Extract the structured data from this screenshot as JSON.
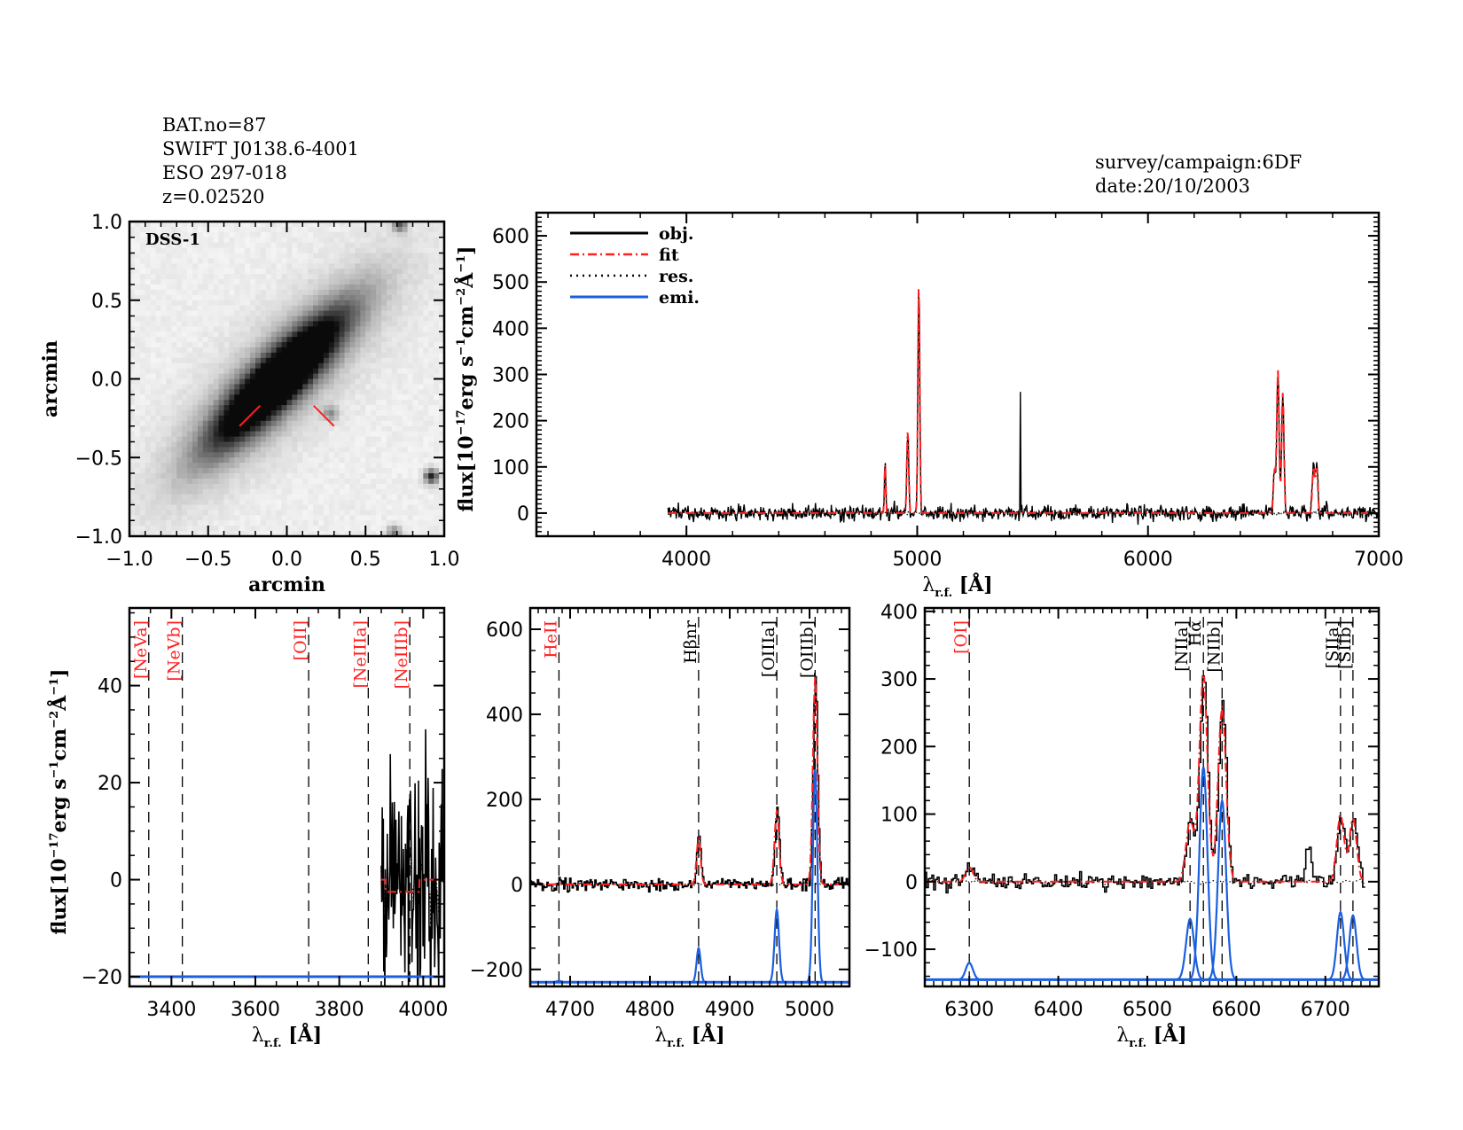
{
  "header_left": {
    "lines": [
      "BAT.no=87",
      "SWIFT J0138.6-4001",
      "ESO 297-018",
      "z=0.02520"
    ]
  },
  "header_right": {
    "lines": [
      "survey/campaign:6DF",
      "date:20/10/2003"
    ]
  },
  "colors": {
    "obj": "#000000",
    "fit": "#ff2020",
    "res": "#000000",
    "emi": "#1a5fe0",
    "line_marker_red": "#ff2020",
    "line_marker_black": "#000000"
  },
  "chart_data": [
    {
      "id": "image",
      "type": "heatmap",
      "title": "",
      "label": "DSS-1",
      "xlabel": "arcmin",
      "ylabel": "arcmin",
      "xlim": [
        -1.0,
        1.0
      ],
      "ylim": [
        -1.0,
        1.0
      ],
      "xticks": [
        "-1.0",
        "-0.5",
        "0.0",
        "0.5",
        "1.0"
      ],
      "yticks": [
        "-1.0",
        "-0.5",
        "0.0",
        "0.5",
        "1.0"
      ],
      "galaxy": {
        "center": [
          -0.05,
          0.0
        ],
        "position_angle_deg": 45,
        "major": 0.55,
        "minor": 0.14
      },
      "sources": [
        {
          "x": 0.92,
          "y": -0.62,
          "strength": 0.9
        },
        {
          "x": 0.72,
          "y": 0.98,
          "strength": 0.6
        },
        {
          "x": 0.68,
          "y": -0.98,
          "strength": 0.5
        },
        {
          "x": 0.28,
          "y": -0.22,
          "strength": 0.4
        }
      ],
      "slit_marks": [
        {
          "x1": -0.3,
          "y1": -0.3,
          "x2": -0.17,
          "y2": -0.17
        },
        {
          "x1": 0.17,
          "y1": -0.17,
          "x2": 0.3,
          "y2": -0.3
        }
      ]
    },
    {
      "id": "full",
      "type": "line",
      "xlabel": "λr.f. [Å]",
      "ylabel": "flux[10^-17 erg s^-1 cm^-2 Å^-1]",
      "xlim": [
        3350,
        7000
      ],
      "ylim": [
        -50,
        650
      ],
      "xticks": [
        4000,
        5000,
        6000,
        7000
      ],
      "yticks": [
        0,
        100,
        200,
        300,
        400,
        500,
        600
      ],
      "data_range": [
        3920,
        7000
      ],
      "noise": 14,
      "legend": {
        "position": "top-left",
        "entries": [
          {
            "label": "obj.",
            "style": "solid",
            "color": "#000000"
          },
          {
            "label": "fit",
            "style": "dashdot",
            "color": "#ff2020"
          },
          {
            "label": "res.",
            "style": "dotted",
            "color": "#000000"
          },
          {
            "label": "emi.",
            "style": "solid",
            "color": "#1a5fe0"
          }
        ]
      },
      "lines": [
        {
          "name": "Hβ",
          "wave": 4861,
          "peak": 110,
          "sigma": 3
        },
        {
          "name": "[OIII]a",
          "wave": 4959,
          "peak": 180,
          "sigma": 4
        },
        {
          "name": "[OIII]b",
          "wave": 5007,
          "peak": 500,
          "sigma": 4
        },
        {
          "name": "[NII]a",
          "wave": 6548,
          "peak": 90,
          "sigma": 5
        },
        {
          "name": "Hα",
          "wave": 6563,
          "peak": 310,
          "sigma": 5
        },
        {
          "name": "[NII]b",
          "wave": 6584,
          "peak": 260,
          "sigma": 5
        },
        {
          "name": "[SII]a",
          "wave": 6717,
          "peak": 100,
          "sigma": 5
        },
        {
          "name": "[SII]b",
          "wave": 6731,
          "peak": 95,
          "sigma": 5
        }
      ],
      "spikes": [
        {
          "wave": 5447,
          "peak": 265
        }
      ]
    },
    {
      "id": "zoom1",
      "type": "line",
      "xlabel": "λr.f. [Å]",
      "ylabel": "flux[10^-17 erg s^-1 cm^-2 Å^-1]",
      "xlim": [
        3300,
        4050
      ],
      "ylim": [
        -22,
        56
      ],
      "xticks": [
        3400,
        3600,
        3800,
        4000
      ],
      "yticks": [
        -20,
        0,
        20,
        40
      ],
      "data_range": [
        3900,
        4050
      ],
      "noise": 20,
      "emi_baseline": -20,
      "markers": [
        {
          "label": "[NeVa]",
          "wave": 3346,
          "color": "#ff2020"
        },
        {
          "label": "[NeVb]",
          "wave": 3426,
          "color": "#ff2020"
        },
        {
          "label": "[OII]",
          "wave": 3727,
          "color": "#ff2020"
        },
        {
          "label": "[NeIIIa]",
          "wave": 3869,
          "color": "#ff2020"
        },
        {
          "label": "[NeIIIb]",
          "wave": 3968,
          "color": "#ff2020"
        }
      ],
      "lines": []
    },
    {
      "id": "zoom2",
      "type": "line",
      "xlabel": "λr.f. [Å]",
      "ylabel": "",
      "xlim": [
        4650,
        5050
      ],
      "ylim": [
        -240,
        650
      ],
      "xticks": [
        4700,
        4800,
        4900,
        5000
      ],
      "yticks": [
        -200,
        0,
        200,
        400,
        600
      ],
      "data_range": [
        4650,
        5050
      ],
      "noise": 12,
      "emi_baseline": -230,
      "markers": [
        {
          "label": "HeII",
          "wave": 4686,
          "color": "#ff2020"
        },
        {
          "label": "Hβnr",
          "wave": 4861,
          "color": "#000000"
        },
        {
          "label": "[OIIIa]",
          "wave": 4959,
          "color": "#000000"
        },
        {
          "label": "[OIIIb]",
          "wave": 5007,
          "color": "#000000"
        }
      ],
      "lines": [
        {
          "name": "HeII",
          "wave": 4686,
          "peak": 3,
          "emi_peak": 3,
          "sigma": 3
        },
        {
          "name": "Hβnr",
          "wave": 4861,
          "peak": 110,
          "emi_peak": 80,
          "sigma": 2.5
        },
        {
          "name": "[OIIIa]",
          "wave": 4959,
          "peak": 175,
          "emi_peak": 170,
          "sigma": 2.8
        },
        {
          "name": "[OIIIb]",
          "wave": 5007,
          "peak": 490,
          "emi_peak": 500,
          "sigma": 2.8
        }
      ]
    },
    {
      "id": "zoom3",
      "type": "line",
      "xlabel": "λr.f. [Å]",
      "ylabel": "",
      "xlim": [
        6250,
        6760
      ],
      "ylim": [
        -155,
        405
      ],
      "xticks": [
        6300,
        6400,
        6500,
        6600,
        6700
      ],
      "yticks": [
        -100,
        0,
        100,
        200,
        300,
        400
      ],
      "data_range": [
        6250,
        6745
      ],
      "noise": 10,
      "emi_baseline": -145,
      "markers": [
        {
          "label": "[OI]",
          "wave": 6300,
          "color": "#ff2020"
        },
        {
          "label": "[NIIa]",
          "wave": 6548,
          "color": "#000000"
        },
        {
          "label": "Hα",
          "wave": 6563,
          "color": "#000000"
        },
        {
          "label": "[NIIb]",
          "wave": 6584,
          "color": "#000000"
        },
        {
          "label": "[SIIa]",
          "wave": 6717,
          "color": "#000000"
        },
        {
          "label": "[SIIb]",
          "wave": 6731,
          "color": "#000000"
        }
      ],
      "lines": [
        {
          "name": "[OI]",
          "wave": 6300,
          "peak": 22,
          "emi_peak": 25,
          "sigma": 4
        },
        {
          "name": "[NIIa]",
          "wave": 6548,
          "peak": 90,
          "emi_peak": 90,
          "sigma": 4.5
        },
        {
          "name": "Hα",
          "wave": 6563,
          "peak": 310,
          "emi_peak": 315,
          "sigma": 4.5
        },
        {
          "name": "[NIIb]",
          "wave": 6584,
          "peak": 260,
          "emi_peak": 265,
          "sigma": 4.5
        },
        {
          "name": "[SIIa]",
          "wave": 6717,
          "peak": 100,
          "emi_peak": 100,
          "sigma": 4
        },
        {
          "name": "[SIIb]",
          "wave": 6731,
          "peak": 95,
          "emi_peak": 95,
          "sigma": 4
        }
      ],
      "extras": [
        {
          "wave": 6680,
          "peak": 55,
          "sigma": 3
        }
      ]
    }
  ]
}
